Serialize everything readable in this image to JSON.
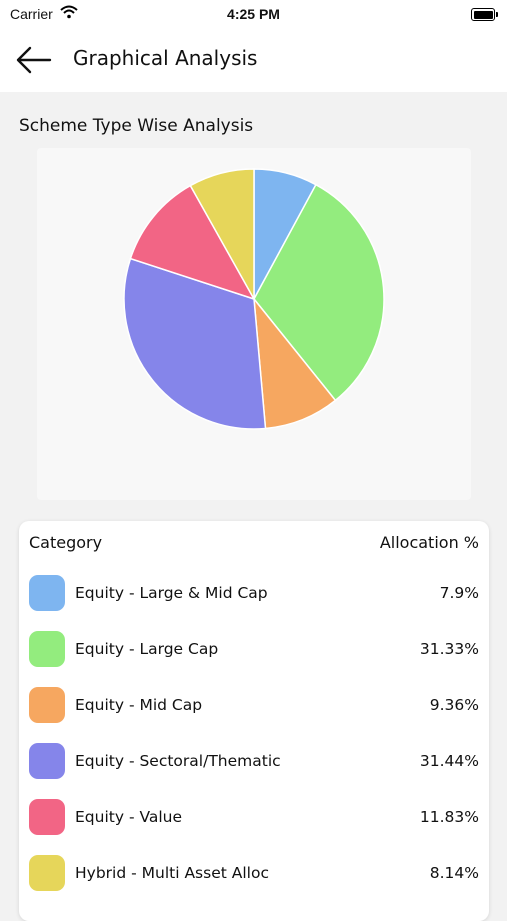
{
  "status_bar": {
    "carrier": "Carrier",
    "time": "4:25 PM"
  },
  "header": {
    "title": "Graphical Analysis",
    "back_icon": "arrow-left-icon"
  },
  "section": {
    "title": "Scheme Type Wise Analysis"
  },
  "legend": {
    "col_category": "Category",
    "col_allocation": "Allocation %",
    "items": [
      {
        "label": "Equity - Large & Mid Cap",
        "value": "7.9%"
      },
      {
        "label": "Equity - Large Cap",
        "value": "31.33%"
      },
      {
        "label": "Equity - Mid Cap",
        "value": "9.36%"
      },
      {
        "label": "Equity - Sectoral/Thematic",
        "value": "31.44%"
      },
      {
        "label": "Equity - Value",
        "value": "11.83%"
      },
      {
        "label": "Hybrid - Multi Asset Alloc",
        "value": "8.14%"
      }
    ]
  },
  "chart_data": {
    "type": "pie",
    "categories": [
      "Equity - Large & Mid Cap",
      "Equity - Large Cap",
      "Equity - Mid Cap",
      "Equity - Sectoral/Thematic",
      "Equity - Value",
      "Hybrid - Multi Asset Alloc"
    ],
    "values": [
      7.9,
      31.33,
      9.36,
      31.44,
      11.83,
      8.14
    ],
    "colors": [
      "#7eb5f0",
      "#93ec7e",
      "#f6a760",
      "#8585ea",
      "#f26585",
      "#e6d65a"
    ],
    "title": "",
    "legend": "bottom"
  }
}
